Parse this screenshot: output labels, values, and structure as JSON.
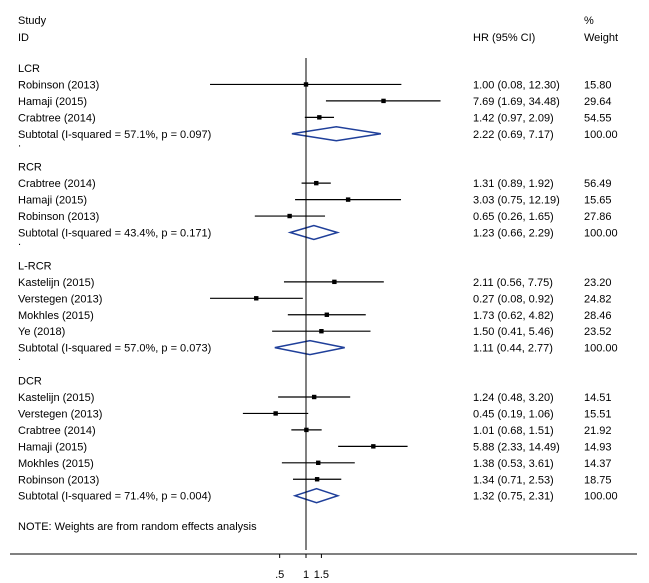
{
  "header": {
    "study_line1": "Study",
    "study_line2": "ID",
    "hr_label": "HR (95% CI)",
    "weight_line1": "%",
    "weight_line2": "Weight"
  },
  "note": "NOTE: Weights are from random effects analysis",
  "chart_data": {
    "type": "forest",
    "xaxis": {
      "scale": "log",
      "ticks": [
        ".5",
        "1",
        "1.5"
      ],
      "reference_line": 1
    },
    "groups": [
      {
        "name": "LCR",
        "studies": [
          {
            "label": "Robinson (2013)",
            "hr": 1.0,
            "lo": 0.08,
            "hi": 12.3,
            "ci_text": "1.00 (0.08, 12.30)",
            "weight": "15.80"
          },
          {
            "label": "Hamaji (2015)",
            "hr": 7.69,
            "lo": 1.69,
            "hi": 34.48,
            "ci_text": "7.69 (1.69, 34.48)",
            "weight": "29.64"
          },
          {
            "label": "Crabtree (2014)",
            "hr": 1.42,
            "lo": 0.97,
            "hi": 2.09,
            "ci_text": "1.42 (0.97, 2.09)",
            "weight": "54.55"
          }
        ],
        "subtotal": {
          "label": "Subtotal  (I-squared = 57.1%, p = 0.097)",
          "hr": 2.22,
          "lo": 0.69,
          "hi": 7.17,
          "ci_text": "2.22 (0.69, 7.17)",
          "weight": "100.00"
        }
      },
      {
        "name": "RCR",
        "studies": [
          {
            "label": "Crabtree (2014)",
            "hr": 1.31,
            "lo": 0.89,
            "hi": 1.92,
            "ci_text": "1.31 (0.89, 1.92)",
            "weight": "56.49"
          },
          {
            "label": "Hamaji (2015)",
            "hr": 3.03,
            "lo": 0.75,
            "hi": 12.19,
            "ci_text": "3.03 (0.75, 12.19)",
            "weight": "15.65"
          },
          {
            "label": "Robinson (2013)",
            "hr": 0.65,
            "lo": 0.26,
            "hi": 1.65,
            "ci_text": "0.65 (0.26, 1.65)",
            "weight": "27.86"
          }
        ],
        "subtotal": {
          "label": "Subtotal  (I-squared = 43.4%, p = 0.171)",
          "hr": 1.23,
          "lo": 0.66,
          "hi": 2.29,
          "ci_text": "1.23 (0.66, 2.29)",
          "weight": "100.00"
        }
      },
      {
        "name": "L-RCR",
        "studies": [
          {
            "label": "Kastelijn (2015)",
            "hr": 2.11,
            "lo": 0.56,
            "hi": 7.75,
            "ci_text": "2.11 (0.56, 7.75)",
            "weight": "23.20"
          },
          {
            "label": "Verstegen (2013)",
            "hr": 0.27,
            "lo": 0.08,
            "hi": 0.92,
            "ci_text": "0.27 (0.08, 0.92)",
            "weight": "24.82"
          },
          {
            "label": "Mokhles (2015)",
            "hr": 1.73,
            "lo": 0.62,
            "hi": 4.82,
            "ci_text": "1.73 (0.62, 4.82)",
            "weight": "28.46"
          },
          {
            "label": "Ye (2018)",
            "hr": 1.5,
            "lo": 0.41,
            "hi": 5.46,
            "ci_text": "1.50 (0.41, 5.46)",
            "weight": "23.52"
          }
        ],
        "subtotal": {
          "label": "Subtotal  (I-squared = 57.0%, p = 0.073)",
          "hr": 1.11,
          "lo": 0.44,
          "hi": 2.77,
          "ci_text": "1.11 (0.44, 2.77)",
          "weight": "100.00"
        }
      },
      {
        "name": "DCR",
        "studies": [
          {
            "label": "Kastelijn (2015)",
            "hr": 1.24,
            "lo": 0.48,
            "hi": 3.2,
            "ci_text": "1.24 (0.48, 3.20)",
            "weight": "14.51"
          },
          {
            "label": "Verstegen (2013)",
            "hr": 0.45,
            "lo": 0.19,
            "hi": 1.06,
            "ci_text": "0.45 (0.19, 1.06)",
            "weight": "15.51"
          },
          {
            "label": "Crabtree (2014)",
            "hr": 1.01,
            "lo": 0.68,
            "hi": 1.51,
            "ci_text": "1.01 (0.68, 1.51)",
            "weight": "21.92"
          },
          {
            "label": "Hamaji (2015)",
            "hr": 5.88,
            "lo": 2.33,
            "hi": 14.49,
            "ci_text": "5.88 (2.33, 14.49)",
            "weight": "14.93"
          },
          {
            "label": "Mokhles (2015)",
            "hr": 1.38,
            "lo": 0.53,
            "hi": 3.61,
            "ci_text": "1.38 (0.53, 3.61)",
            "weight": "14.37"
          },
          {
            "label": "Robinson (2013)",
            "hr": 1.34,
            "lo": 0.71,
            "hi": 2.53,
            "ci_text": "1.34 (0.71, 2.53)",
            "weight": "18.75"
          }
        ],
        "subtotal": {
          "label": "Subtotal  (I-squared = 71.4%, p = 0.004)",
          "hr": 1.32,
          "lo": 0.75,
          "hi": 2.31,
          "ci_text": "1.32 (0.75, 2.31)",
          "weight": "100.00"
        }
      }
    ]
  }
}
